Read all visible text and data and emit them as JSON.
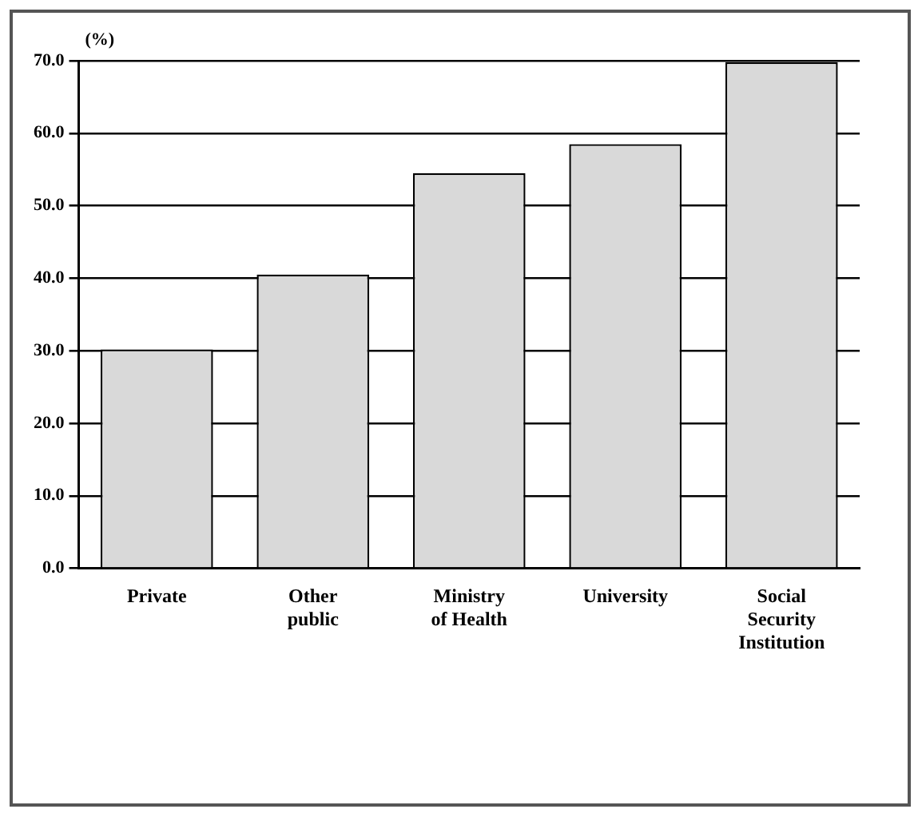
{
  "chart_data": {
    "type": "bar",
    "ylabel": "(%)",
    "categories": [
      "Private",
      "Other public",
      "Ministry of Health",
      "University",
      "Social Security Institution"
    ],
    "values": [
      30.2,
      40.5,
      54.5,
      58.5,
      69.8
    ],
    "color": "#d9d9d9",
    "ylim": [
      0,
      70
    ],
    "yticks": [
      {
        "value": 0,
        "label": "0.0"
      },
      {
        "value": 10,
        "label": "10.0"
      },
      {
        "value": 20,
        "label": "20.0"
      },
      {
        "value": 30,
        "label": "30.0"
      },
      {
        "value": 40,
        "label": "40.0"
      },
      {
        "value": 50,
        "label": "50.0"
      },
      {
        "value": 60,
        "label": "60.0"
      },
      {
        "value": 70,
        "label": "70.0"
      }
    ],
    "grid": "y",
    "legend": false
  }
}
